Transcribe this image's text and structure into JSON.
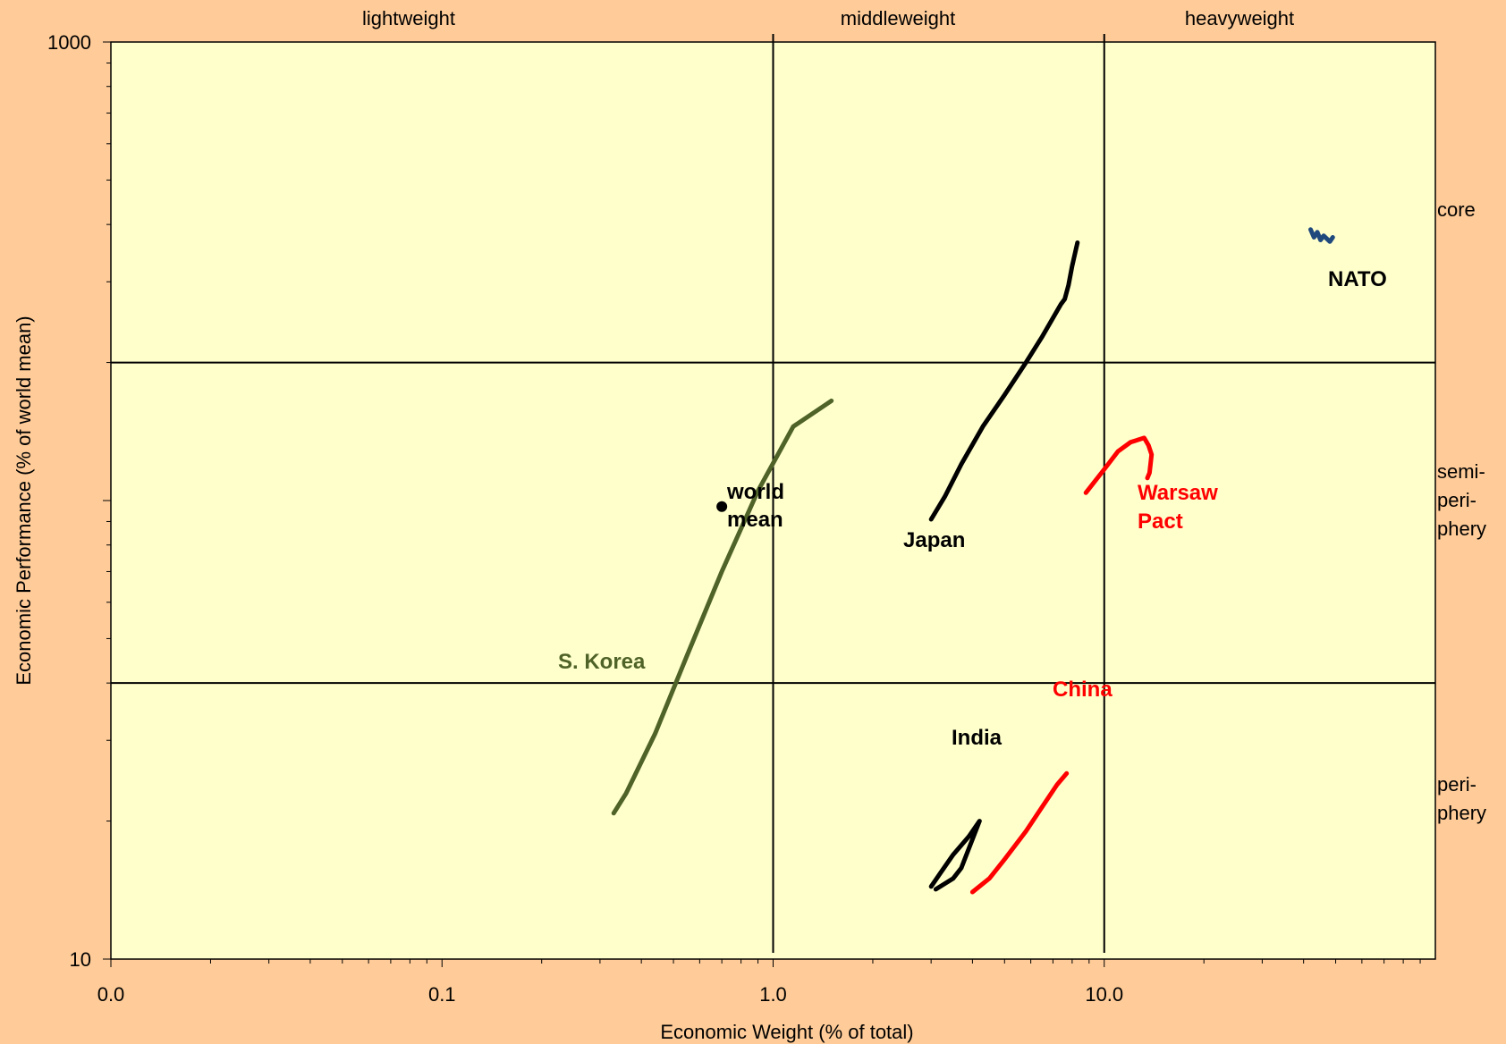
{
  "chart_data": {
    "type": "line",
    "x_scale": "log",
    "y_scale": "log",
    "xlabel": "Economic Weight (% of total)",
    "ylabel": "Economic Performance (% of world mean)",
    "xlim": [
      0.01,
      100
    ],
    "ylim": [
      10,
      1000
    ],
    "x_tick_labels": [
      {
        "value": 0.01,
        "label": "0.0"
      },
      {
        "value": 0.1,
        "label": "0.1"
      },
      {
        "value": 1,
        "label": "1.0"
      },
      {
        "value": 10,
        "label": "10.0"
      }
    ],
    "y_tick_labels": [
      {
        "value": 10,
        "label": "10"
      },
      {
        "value": 1000,
        "label": "1000"
      }
    ],
    "grid": false,
    "zones_x": {
      "boundaries": [
        1,
        10
      ],
      "labels": [
        "lightweight",
        "middleweight",
        "heavyweight"
      ]
    },
    "zones_y": {
      "boundaries": [
        40,
        200
      ],
      "labels": [
        "core",
        "semi-periphery",
        "periphery"
      ]
    },
    "series": [
      {
        "name": "S. Korea",
        "color": "#4F6228",
        "points": [
          [
            0.33,
            20.8
          ],
          [
            0.36,
            23
          ],
          [
            0.44,
            31
          ],
          [
            0.55,
            46
          ],
          [
            0.7,
            70
          ],
          [
            0.9,
            105
          ],
          [
            1.15,
            145
          ],
          [
            1.5,
            165
          ]
        ]
      },
      {
        "name": "Japan",
        "color": "#000000",
        "points": [
          [
            3.0,
            91
          ],
          [
            3.3,
            102
          ],
          [
            3.7,
            120
          ],
          [
            4.3,
            145
          ],
          [
            5.0,
            170
          ],
          [
            5.8,
            200
          ],
          [
            6.5,
            228
          ],
          [
            7.4,
            268
          ],
          [
            7.6,
            275
          ],
          [
            7.8,
            295
          ],
          [
            8.0,
            325
          ],
          [
            8.3,
            365
          ]
        ]
      },
      {
        "name": "Warsaw Pact",
        "color": "#FF0000",
        "points": [
          [
            8.8,
            104
          ],
          [
            10.0,
            117
          ],
          [
            11.0,
            128
          ],
          [
            12.0,
            134
          ],
          [
            13.2,
            137
          ],
          [
            13.6,
            132
          ],
          [
            13.9,
            126
          ],
          [
            13.8,
            120
          ],
          [
            13.7,
            115
          ],
          [
            13.5,
            112
          ]
        ]
      },
      {
        "name": "NATO",
        "color": "#1F497D",
        "points": [
          [
            42,
            390
          ],
          [
            43,
            375
          ],
          [
            44,
            385
          ],
          [
            45,
            370
          ],
          [
            46,
            378
          ],
          [
            48,
            367
          ],
          [
            49,
            375
          ]
        ]
      },
      {
        "name": "India",
        "color": "#000000",
        "points": [
          [
            3.0,
            14.4
          ],
          [
            3.2,
            15.4
          ],
          [
            3.5,
            16.9
          ],
          [
            3.9,
            18.5
          ],
          [
            4.2,
            20.0
          ],
          [
            3.7,
            15.8
          ],
          [
            3.5,
            15.0
          ],
          [
            3.1,
            14.2
          ]
        ]
      },
      {
        "name": "China",
        "color": "#FF0000",
        "points": [
          [
            4.0,
            14.0
          ],
          [
            4.5,
            15.0
          ],
          [
            5.0,
            16.5
          ],
          [
            5.8,
            19.0
          ],
          [
            6.5,
            21.5
          ],
          [
            7.2,
            24.0
          ],
          [
            7.7,
            25.4
          ]
        ]
      }
    ],
    "markers": [
      {
        "name": "world mean",
        "x": 0.7,
        "y": 97
      }
    ],
    "annotations": [
      "S. Korea",
      "world mean",
      "Japan",
      "Warsaw Pact",
      "NATO",
      "India",
      "China"
    ]
  }
}
